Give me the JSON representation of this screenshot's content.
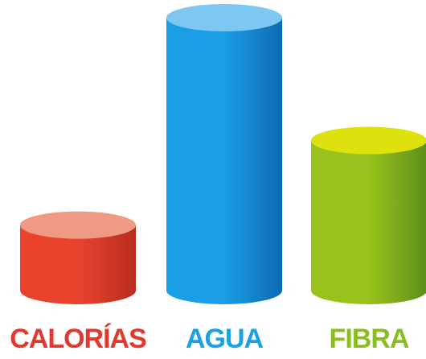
{
  "chart_data": {
    "type": "bar",
    "style": "3d-cylinder",
    "title": "",
    "xlabel": "",
    "ylabel": "",
    "grid": false,
    "legend": "none",
    "categories": [
      "CALORÍAS",
      "AGUA",
      "FIBRA"
    ],
    "values": [
      24,
      100,
      55
    ],
    "ylim": [
      0,
      100
    ],
    "colors": [
      {
        "top": "#ef9a83",
        "side_light": "#e9432e",
        "side_dark": "#b82d20",
        "label": "#e3382d"
      },
      {
        "top": "#7dc8f2",
        "side_light": "#1a9ee6",
        "side_dark": "#0e6bb1",
        "label": "#1d9fe3"
      },
      {
        "top": "#dde20f",
        "side_light": "#98c31d",
        "side_dark": "#5d8f18",
        "label": "#8bbd22"
      }
    ]
  }
}
